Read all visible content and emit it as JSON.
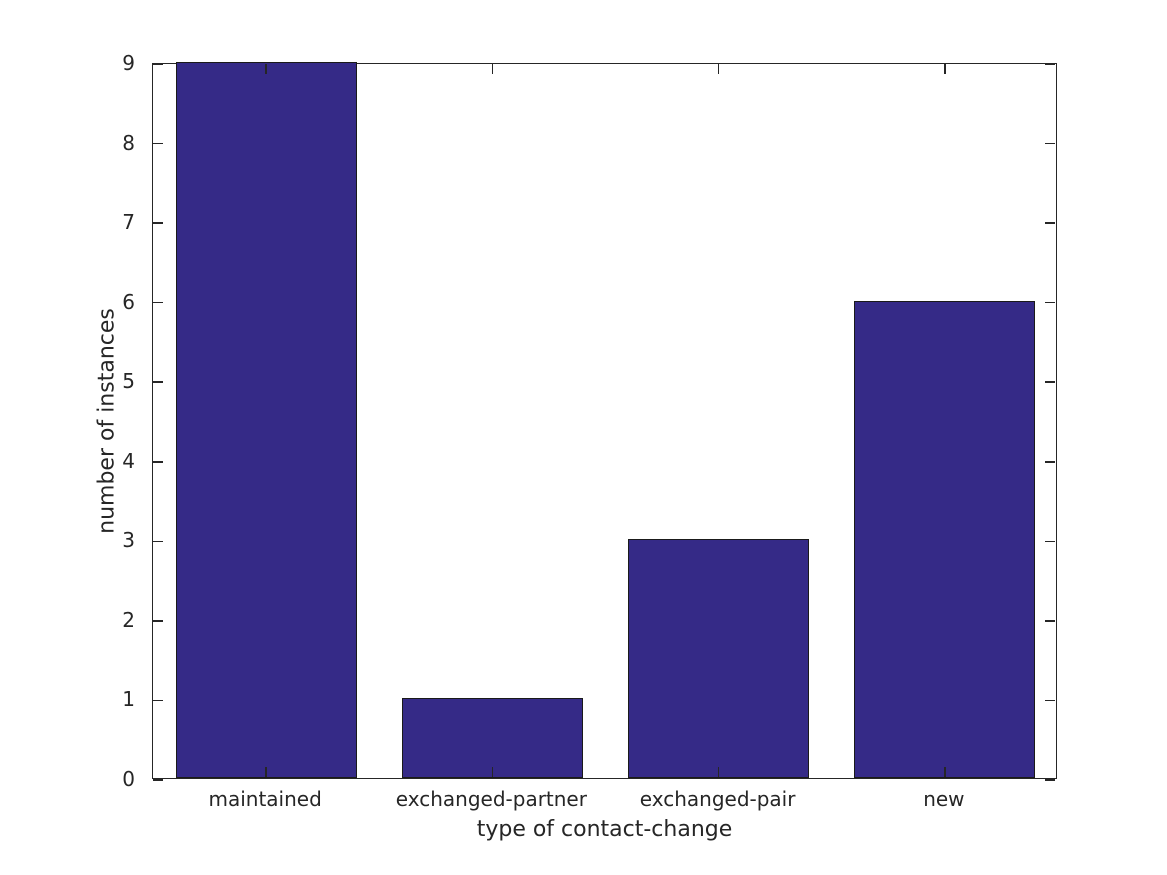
{
  "chart_data": {
    "type": "bar",
    "categories": [
      "maintained",
      "exchanged-partner",
      "exchanged-pair",
      "new"
    ],
    "values": [
      9,
      1,
      3,
      6
    ],
    "title": "",
    "xlabel": "type of contact-change",
    "ylabel": "number of instances",
    "ylim": [
      0,
      9
    ],
    "yticks": [
      0,
      1,
      2,
      3,
      4,
      5,
      6,
      7,
      8,
      9
    ],
    "bar_color": "#352a87",
    "bar_edge_color": "#1a1a1a",
    "axis_color": "#262626",
    "text_color": "#262626",
    "background": "#ffffff",
    "bar_width_fraction": 0.8,
    "grid": false,
    "legend": null,
    "tick_direction": "in"
  }
}
